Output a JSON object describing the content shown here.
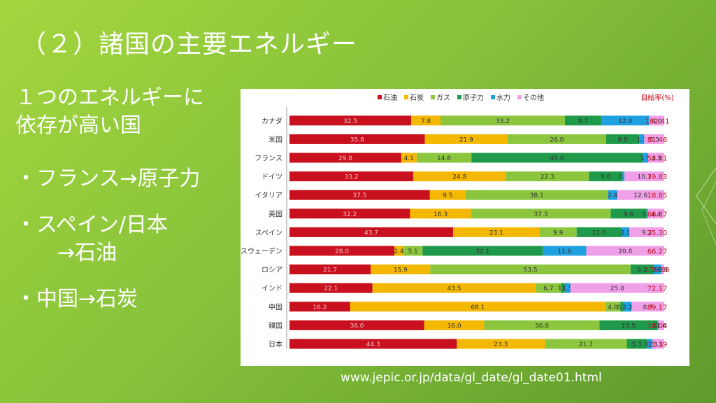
{
  "slide": {
    "title": "（２）諸国の主要エネルギー",
    "lead_line1": "１つのエネルギーに",
    "lead_line2": "依存が高い国",
    "bullet1": "・フランス→原子力",
    "bullet2_line1": "・スペイン/日本",
    "bullet2_line2": "→石油",
    "bullet3": "・中国→石炭",
    "source": "www.jepic.or.jp/data/gl_date/gl_date01.html"
  },
  "chart_data": {
    "type": "bar",
    "stacked": true,
    "orientation": "horizontal",
    "legend_position": "top",
    "self_sufficiency_label": "自給率(%)",
    "categories": [
      "カナダ",
      "米国",
      "フランス",
      "ドイツ",
      "イタリア",
      "英国",
      "スペイン",
      "スウェーデン",
      "ロシア",
      "インド",
      "中国",
      "韓国",
      "日本"
    ],
    "series": [
      {
        "name": "石油",
        "color": "#c8101e",
        "values": [
          32.5,
          35.8,
          29.8,
          33.2,
          37.5,
          32.2,
          43.7,
          28.0,
          21.7,
          22.1,
          16.2,
          36.0,
          44.3
        ]
      },
      {
        "name": "石炭",
        "color": "#f5b800",
        "values": [
          7.8,
          21.9,
          4.1,
          24.8,
          9.5,
          16.3,
          23.1,
          2.4,
          15.9,
          43.5,
          68.1,
          16.0,
          23.3
        ]
      },
      {
        "name": "ガス",
        "color": "#8cc63e",
        "values": [
          33.2,
          26.0,
          14.6,
          22.3,
          38.1,
          37.3,
          9.9,
          5.1,
          53.5,
          6.7,
          4.0,
          30.8,
          21.7
        ]
      },
      {
        "name": "原子力",
        "color": "#1f9a4a",
        "values": [
          9.7,
          8.8,
          45.6,
          9.0,
          0,
          9.6,
          12.0,
          32.1,
          6.2,
          1.0,
          0.8,
          15.5,
          5.3
        ]
      },
      {
        "name": "水力",
        "color": "#1fa0e0",
        "values": [
          12.8,
          1.3,
          1.5,
          0.5,
          2.4,
          0.3,
          2.1,
          11.6,
          2.0,
          1.5,
          2.2,
          0.2,
          1.5
        ]
      },
      {
        "name": "その他",
        "color": "#f0a0e8",
        "values": [
          4.0,
          5.3,
          4.3,
          10.7,
          12.6,
          4.4,
          9.3,
          20.8,
          0.8,
          25.0,
          8.7,
          1.6,
          3.1
        ]
      }
    ],
    "labels": [
      [
        "32.5",
        "7.8",
        "33.2",
        "9.7",
        "12.8",
        "4.0"
      ],
      [
        "35.8",
        "21.9",
        "26.0",
        "8.8",
        "1.3",
        "5.3"
      ],
      [
        "29.8",
        "4.1",
        "14.6",
        "45.6",
        "1.5",
        "4.3"
      ],
      [
        "33.2",
        "24.8",
        "22.3",
        "9.0",
        "0.5",
        "10.7"
      ],
      [
        "37.5",
        "9.5",
        "38.1",
        "",
        "2.4",
        "12.6"
      ],
      [
        "32.2",
        "16.3",
        "37.3",
        "9.6",
        "0.3",
        "4.4"
      ],
      [
        "43.7",
        "23.1",
        "9.9",
        "12.0",
        "2.1",
        "9.3"
      ],
      [
        "28.0",
        "2.4",
        "5.1",
        "32.1",
        "11.6",
        "20.8"
      ],
      [
        "21.7",
        "15.9",
        "53.5",
        "6.2",
        "2.0",
        "0.8"
      ],
      [
        "22.1",
        "43.5",
        "6.7",
        "1.0",
        "1.5",
        "25.0"
      ],
      [
        "16.2",
        "68.1",
        "4.0",
        "0.8",
        "2.2",
        "8.7"
      ],
      [
        "36.0",
        "16.0",
        "30.8",
        "15.5",
        "0.2",
        "1.6"
      ],
      [
        "44.3",
        "23.3",
        "21.7",
        "5.3",
        "1.5",
        "3.1"
      ]
    ],
    "self_sufficiency": [
      "182.41",
      "81.46",
      "53.81",
      "39.83",
      "18.85",
      "68.87",
      "25.30",
      "66.27",
      "179.88",
      "72.17",
      "89.17",
      "18.04",
      "11.19"
    ],
    "xlim": [
      0,
      100
    ]
  }
}
